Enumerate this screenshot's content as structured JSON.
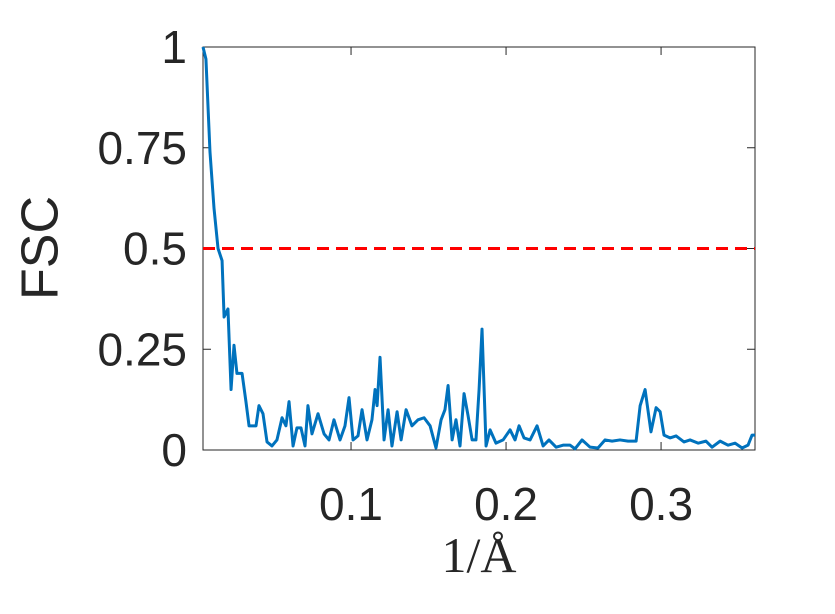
{
  "chart_data": {
    "type": "line",
    "x_label": "1/Å",
    "y_label": "FSC",
    "xlim": [
      0.0045,
      0.3606
    ],
    "ylim": [
      0,
      1
    ],
    "xticks": [
      0.1,
      0.2,
      0.3
    ],
    "yticks": [
      0,
      0.25,
      0.5,
      0.75,
      1
    ],
    "threshold": 0.5,
    "threshold_color": "#ff0000",
    "x": [
      0.0045,
      0.0064,
      0.009,
      0.0116,
      0.0142,
      0.0168,
      0.0181,
      0.0206,
      0.0226,
      0.0245,
      0.0264,
      0.0297,
      0.0322,
      0.0342,
      0.0387,
      0.0406,
      0.0432,
      0.0458,
      0.049,
      0.0522,
      0.0555,
      0.058,
      0.06,
      0.0626,
      0.0651,
      0.0677,
      0.0703,
      0.0722,
      0.0748,
      0.0787,
      0.0826,
      0.0858,
      0.089,
      0.0929,
      0.0961,
      0.0987,
      0.1013,
      0.1045,
      0.1071,
      0.1103,
      0.1135,
      0.1155,
      0.1168,
      0.1187,
      0.1213,
      0.1239,
      0.1264,
      0.1297,
      0.1323,
      0.1355,
      0.1393,
      0.1432,
      0.1471,
      0.151,
      0.1548,
      0.1581,
      0.1606,
      0.1626,
      0.1652,
      0.1677,
      0.1703,
      0.1729,
      0.1755,
      0.1781,
      0.1806,
      0.1826,
      0.1845,
      0.1871,
      0.1897,
      0.1935,
      0.1981,
      0.2026,
      0.2058,
      0.2084,
      0.2116,
      0.2155,
      0.22,
      0.2239,
      0.2277,
      0.2323,
      0.2368,
      0.2413,
      0.2445,
      0.249,
      0.2542,
      0.2593,
      0.2639,
      0.2684,
      0.2735,
      0.2787,
      0.2839,
      0.2865,
      0.2897,
      0.2935,
      0.2968,
      0.2994,
      0.3019,
      0.3058,
      0.3097,
      0.3148,
      0.3187,
      0.3239,
      0.329,
      0.3329,
      0.3381,
      0.3432,
      0.3477,
      0.3523,
      0.3561,
      0.3587,
      0.3606
    ],
    "series": [
      {
        "color": "#0072bd",
        "values": [
          1.0,
          0.97,
          0.74,
          0.6,
          0.5,
          0.47,
          0.33,
          0.35,
          0.15,
          0.26,
          0.19,
          0.19,
          0.12,
          0.06,
          0.06,
          0.11,
          0.09,
          0.02,
          0.01,
          0.025,
          0.08,
          0.06,
          0.12,
          0.01,
          0.055,
          0.055,
          0.01,
          0.11,
          0.04,
          0.09,
          0.04,
          0.025,
          0.075,
          0.025,
          0.06,
          0.13,
          0.025,
          0.035,
          0.1,
          0.025,
          0.075,
          0.15,
          0.11,
          0.23,
          0.025,
          0.1,
          0.01,
          0.095,
          0.025,
          0.1,
          0.06,
          0.075,
          0.08,
          0.06,
          0.005,
          0.075,
          0.1,
          0.16,
          0.025,
          0.075,
          0.01,
          0.14,
          0.085,
          0.025,
          0.025,
          0.15,
          0.3,
          0.01,
          0.05,
          0.017,
          0.025,
          0.05,
          0.025,
          0.06,
          0.03,
          0.025,
          0.06,
          0.01,
          0.025,
          0.007,
          0.012,
          0.012,
          0.003,
          0.025,
          0.007,
          0.005,
          0.025,
          0.022,
          0.025,
          0.022,
          0.022,
          0.11,
          0.15,
          0.045,
          0.105,
          0.095,
          0.037,
          0.03,
          0.035,
          0.02,
          0.025,
          0.017,
          0.022,
          0.007,
          0.022,
          0.012,
          0.017,
          0.005,
          0.012,
          0.037,
          0.037
        ]
      }
    ]
  }
}
